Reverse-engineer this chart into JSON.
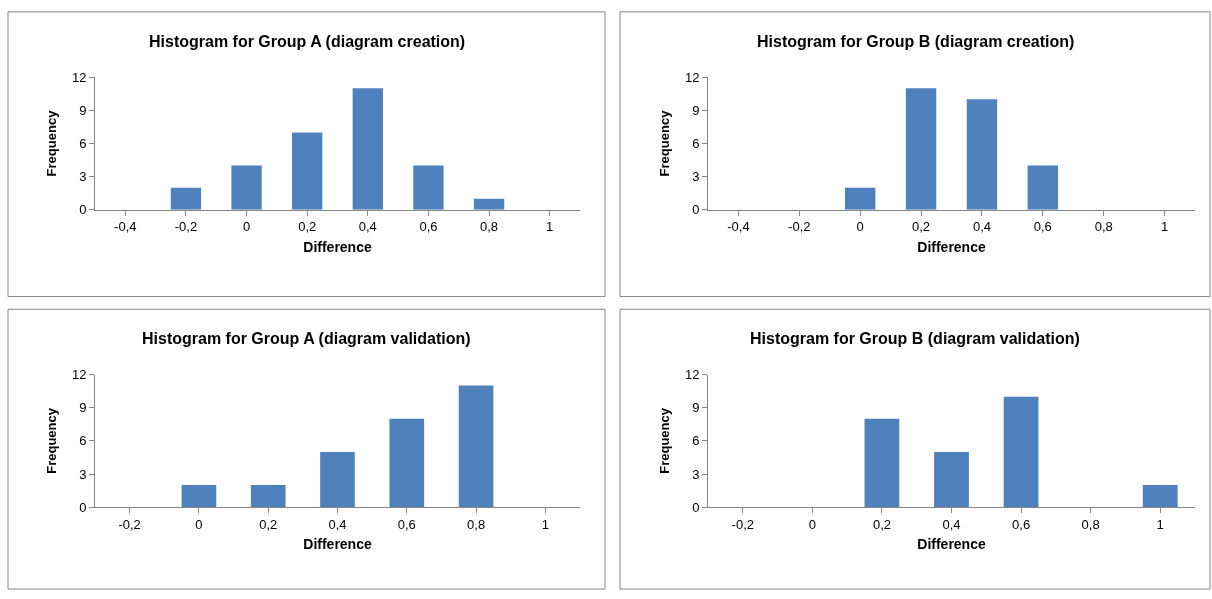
{
  "chart_data": [
    {
      "type": "bar",
      "title": "Histogram for Group A (diagram creation)",
      "xlabel": "Difference",
      "ylabel": "Frequency",
      "categories": [
        "-0,4",
        "-0,2",
        "0",
        "0,2",
        "0,4",
        "0,6",
        "0,8",
        "1"
      ],
      "values": [
        0,
        2,
        4,
        7,
        11,
        4,
        1,
        0
      ],
      "color": "#4f81bd",
      "ylim": [
        0,
        12
      ],
      "yticks": [
        0,
        3,
        6,
        9,
        12
      ]
    },
    {
      "type": "bar",
      "title": "Histogram for Group B (diagram creation)",
      "xlabel": "Difference",
      "ylabel": "Frequency",
      "categories": [
        "-0,4",
        "-0,2",
        "0",
        "0,2",
        "0,4",
        "0,6",
        "0,8",
        "1"
      ],
      "values": [
        0,
        0,
        2,
        11,
        10,
        4,
        0,
        0
      ],
      "color": "#4f81bd",
      "ylim": [
        0,
        12
      ],
      "yticks": [
        0,
        3,
        6,
        9,
        12
      ]
    },
    {
      "type": "bar",
      "title": "Histogram for Group A (diagram validation)",
      "xlabel": "Difference",
      "ylabel": "Frequency",
      "categories": [
        "-0,2",
        "0",
        "0,2",
        "0,4",
        "0,6",
        "0,8",
        "1"
      ],
      "values": [
        0,
        2,
        2,
        5,
        8,
        11,
        0
      ],
      "color": "#4f81bd",
      "ylim": [
        0,
        12
      ],
      "yticks": [
        0,
        3,
        6,
        9,
        12
      ]
    },
    {
      "type": "bar",
      "title": "Histogram for Group B (diagram validation)",
      "xlabel": "Difference",
      "ylabel": "Frequency",
      "categories": [
        "-0,2",
        "0",
        "0,2",
        "0,4",
        "0,6",
        "0,8",
        "1"
      ],
      "values": [
        0,
        0,
        8,
        5,
        10,
        0,
        2
      ],
      "color": "#4f81bd",
      "ylim": [
        0,
        12
      ],
      "yticks": [
        0,
        3,
        6,
        9,
        12
      ]
    }
  ]
}
